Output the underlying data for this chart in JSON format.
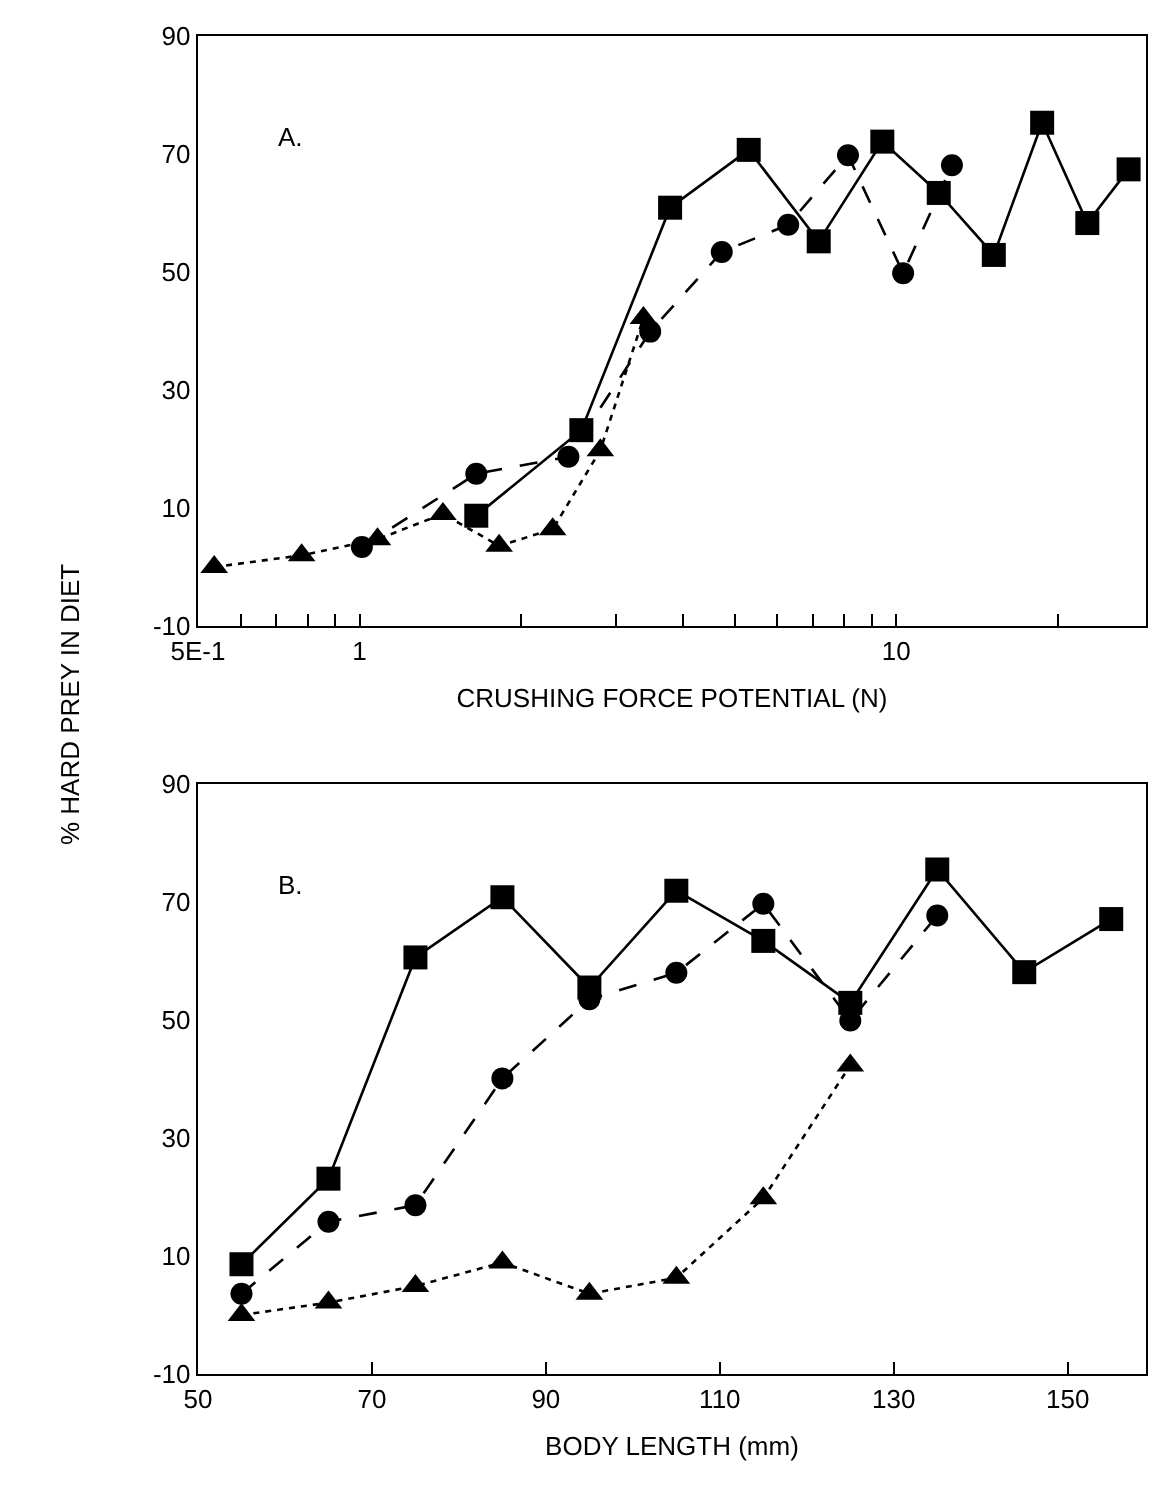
{
  "chart_data": [
    {
      "type": "line",
      "ylabel": "% HARD PREY IN DIET",
      "xlabel": "CRUSHING FORCE POTENTIAL (N)",
      "annotations": [
        "A."
      ],
      "log": "x",
      "xlim": [
        0.5,
        29.2
      ],
      "xticks": [
        {
          "value": 0.5,
          "label": "5E-1"
        },
        {
          "value": 0.6,
          "label": null
        },
        {
          "value": 0.7,
          "label": null
        },
        {
          "value": 0.8,
          "label": null
        },
        {
          "value": 0.9,
          "label": null
        },
        1,
        {
          "value": 2,
          "label": null
        },
        {
          "value": 3,
          "label": null
        },
        {
          "value": 4,
          "label": null
        },
        {
          "value": 5,
          "label": null
        },
        {
          "value": 6,
          "label": null
        },
        {
          "value": 7,
          "label": null
        },
        {
          "value": 8,
          "label": null
        },
        {
          "value": 9,
          "label": null
        },
        10,
        {
          "value": 20,
          "label": null
        }
      ],
      "ylim": [
        -10,
        90
      ],
      "yticks": [
        -10,
        10,
        30,
        50,
        70,
        90
      ],
      "series": [
        {
          "color": "#000000",
          "marker": "square",
          "line_style": "solid",
          "x": [
            1.65,
            2.59,
            3.79,
            5.31,
            7.17,
            9.42,
            12.0,
            15.2,
            18.7,
            22.7,
            27.1
          ],
          "values": [
            8.7,
            23.2,
            60.9,
            70.7,
            55.2,
            72.1,
            63.4,
            52.9,
            75.3,
            58.3,
            67.4
          ]
        },
        {
          "color": "#000000",
          "marker": "circle",
          "line_style": "dashed",
          "x": [
            1.01,
            1.65,
            2.45,
            3.48,
            4.73,
            6.29,
            8.13,
            10.3,
            12.7
          ],
          "values": [
            3.4,
            15.8,
            18.7,
            39.9,
            53.4,
            58.0,
            69.8,
            49.8,
            68.1
          ]
        },
        {
          "color": "#000000",
          "marker": "triangle",
          "line_style": "dotted",
          "x": [
            0.536,
            0.78,
            1.08,
            1.43,
            1.82,
            2.29,
            2.81,
            3.38
          ],
          "values": [
            0.0,
            2.0,
            4.7,
            9.0,
            3.6,
            6.4,
            19.8,
            42.2
          ]
        }
      ]
    },
    {
      "type": "line",
      "xlabel": "BODY LENGTH (mm)",
      "annotations": [
        "B."
      ],
      "xlim": [
        50,
        159
      ],
      "xticks": [
        50,
        70,
        90,
        110,
        130,
        150
      ],
      "ylim": [
        -10,
        90
      ],
      "yticks": [
        -10,
        10,
        30,
        50,
        70,
        90
      ],
      "series": [
        {
          "color": "#000000",
          "marker": "square",
          "line_style": "solid",
          "x": [
            55,
            65,
            75,
            85,
            95,
            105,
            115,
            125,
            135,
            145,
            155
          ],
          "values": [
            8.6,
            23.1,
            60.6,
            70.8,
            55.5,
            71.9,
            63.4,
            52.9,
            75.5,
            58.1,
            67.1
          ]
        },
        {
          "color": "#000000",
          "marker": "circle",
          "line_style": "dashed",
          "x": [
            55,
            65,
            75,
            85,
            95,
            105,
            115,
            125,
            135
          ],
          "values": [
            3.6,
            15.8,
            18.6,
            40.1,
            53.5,
            58.0,
            69.7,
            49.9,
            67.7
          ]
        },
        {
          "color": "#000000",
          "marker": "triangle",
          "line_style": "dotted",
          "x": [
            55,
            65,
            75,
            85,
            95,
            105,
            115,
            125
          ],
          "values": [
            0.0,
            2.1,
            4.9,
            8.9,
            3.6,
            6.3,
            19.8,
            42.3
          ]
        }
      ]
    }
  ]
}
